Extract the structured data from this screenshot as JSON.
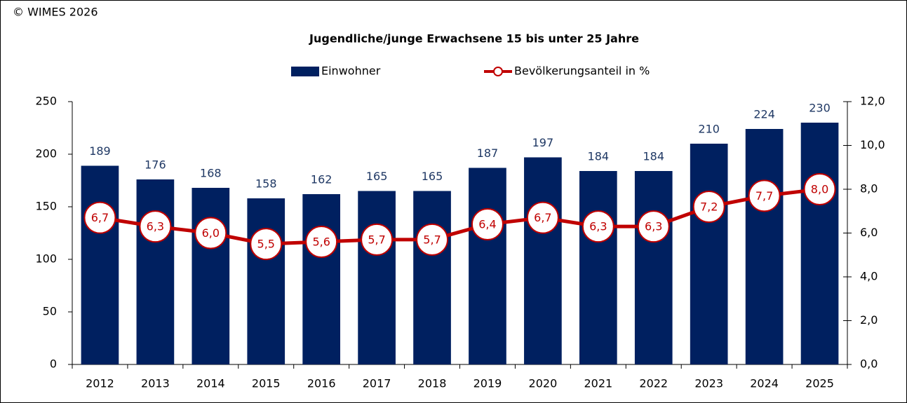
{
  "chart_data": {
    "type": "bar",
    "source": "© WIMES 2026",
    "title": "Jugendliche/junge Erwachsene 15 bis unter 25 Jahre",
    "categories": [
      "2012",
      "2013",
      "2014",
      "2015",
      "2016",
      "2017",
      "2018",
      "2019",
      "2020",
      "2021",
      "2022",
      "2023",
      "2024",
      "2025"
    ],
    "series": [
      {
        "name": "Einwohner",
        "type": "bar",
        "color": "#002060",
        "values": [
          189,
          176,
          168,
          158,
          162,
          165,
          165,
          187,
          197,
          184,
          184,
          210,
          224,
          230
        ]
      },
      {
        "name": "Bevölkerungsanteil in %",
        "type": "line",
        "axis": "y2",
        "color": "#c00000",
        "values": [
          6.7,
          6.3,
          6.0,
          5.5,
          5.6,
          5.7,
          5.7,
          6.4,
          6.7,
          6.3,
          6.3,
          7.2,
          7.7,
          8.0
        ],
        "value_labels": [
          "6,7",
          "6,3",
          "6,0",
          "5,5",
          "5,6",
          "5,7",
          "5,7",
          "6,4",
          "6,7",
          "6,3",
          "6,3",
          "7,2",
          "7,7",
          "8,0"
        ]
      }
    ],
    "ylim": [
      0,
      250
    ],
    "yticks": [
      0,
      50,
      100,
      150,
      200,
      250
    ],
    "y2lim": [
      0,
      12
    ],
    "y2ticks": [
      {
        "value": 0,
        "label": "0,0"
      },
      {
        "value": 2,
        "label": "2,0"
      },
      {
        "value": 4,
        "label": "4,0"
      },
      {
        "value": 6,
        "label": "6,0"
      },
      {
        "value": 8,
        "label": "8,0"
      },
      {
        "value": 10,
        "label": "10,0"
      },
      {
        "value": 12,
        "label": "12,0"
      }
    ],
    "grid": false,
    "legend": "top"
  }
}
